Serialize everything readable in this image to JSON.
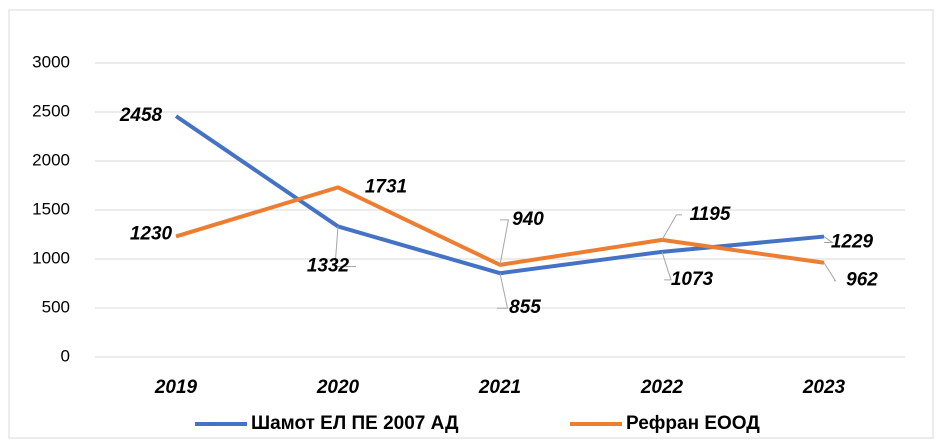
{
  "chart_data": {
    "type": "line",
    "categories": [
      "2019",
      "2020",
      "2021",
      "2022",
      "2023"
    ],
    "series": [
      {
        "name": "Шамот ЕЛ ПЕ 2007 АД",
        "color": "#4472c4",
        "values": [
          2458,
          1332,
          855,
          1073,
          1229
        ]
      },
      {
        "name": "Рефран ЕООД",
        "color": "#ed7d31",
        "values": [
          1230,
          1731,
          940,
          1195,
          962
        ]
      }
    ],
    "ylim": [
      0,
      3000
    ],
    "yticks": [
      0,
      500,
      1000,
      1500,
      2000,
      2500,
      3000
    ],
    "grid": true,
    "legend": "bottom",
    "data_labels": true
  }
}
